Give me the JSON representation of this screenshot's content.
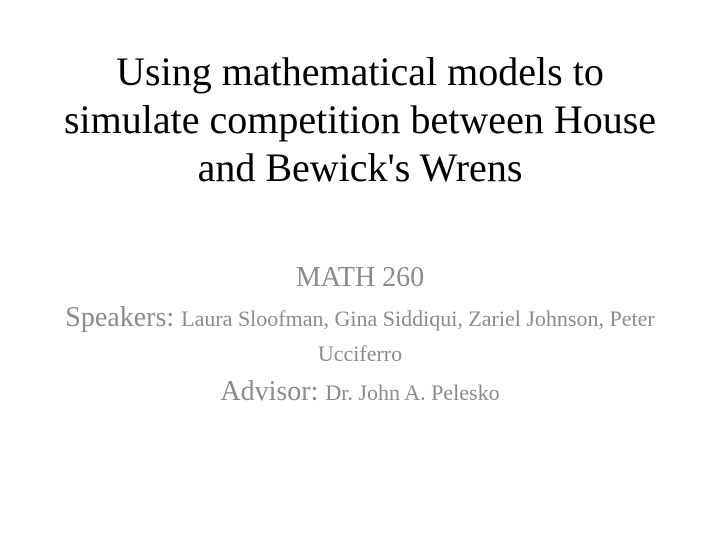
{
  "slide": {
    "title": "Using mathematical models to simulate competition between House and Bewick's Wrens",
    "course": "MATH 260",
    "speakers_label": "Speakers: ",
    "speakers_names": "Laura Sloofman, Gina Siddiqui, Zariel Johnson, Peter Ucciferro",
    "advisor_label": "Advisor: ",
    "advisor_name": "Dr. John A. Pelesko"
  },
  "style": {
    "background_color": "#ffffff",
    "title_color": "#000000",
    "subtitle_color": "#8b8b8b",
    "title_fontsize": 40,
    "subtitle_large_fontsize": 28,
    "subtitle_small_fontsize": 22,
    "font_family": "Times New Roman"
  }
}
